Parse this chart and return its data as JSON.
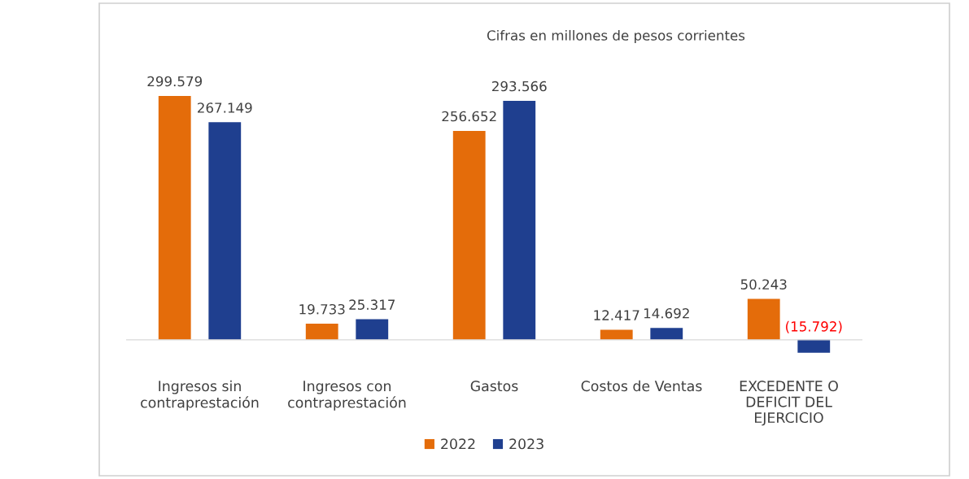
{
  "chart_data": {
    "type": "bar",
    "annotations": [
      "Cifras en millones de pesos corrientes"
    ],
    "categories": [
      "Ingresos sin\ncontraprestación",
      "Ingresos con\ncontraprestación",
      "Gastos",
      "Costos de Ventas",
      "EXCEDENTE O\nDEFICIT DEL\nEJERCICIO"
    ],
    "series": [
      {
        "name": "2022",
        "color": "#e46c0a",
        "values": [
          299.579,
          19.733,
          256.652,
          12.417,
          50.243
        ],
        "value_labels": [
          "299.579",
          "19.733",
          "256.652",
          "12.417",
          "50.243"
        ]
      },
      {
        "name": "2023",
        "color": "#1f3f8f",
        "values": [
          267.149,
          25.317,
          293.566,
          14.692,
          -15.792
        ],
        "value_labels": [
          "267.149",
          "25.317",
          "293.566",
          "14.692",
          "(15.792)"
        ]
      }
    ],
    "legend": "bottom",
    "grid": false
  }
}
